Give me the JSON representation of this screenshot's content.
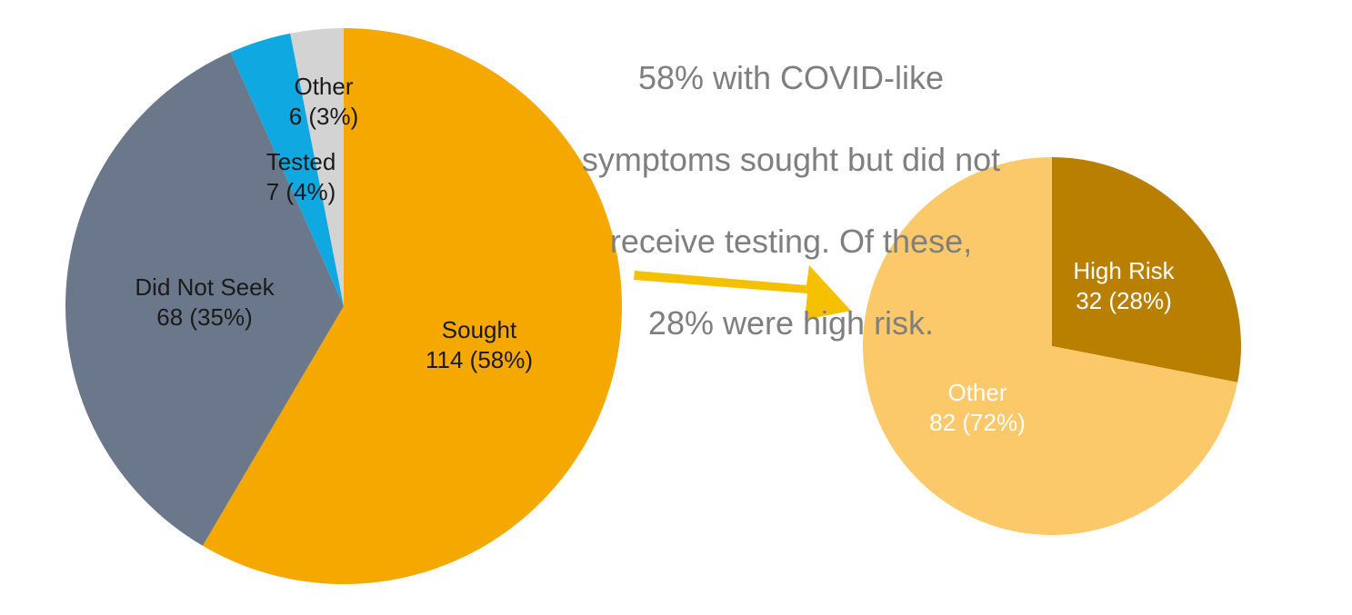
{
  "annotation": {
    "lines": [
      "58% with COVID-like",
      "symptoms sought but did not",
      "receive testing.  Of these,",
      "28% were high risk."
    ]
  },
  "colors": {
    "sought": "#f5a800",
    "did_not_seek": "#6b778a",
    "tested": "#10a8e0",
    "other_main": "#d3d3d3",
    "high_risk": "#b97f00",
    "other_sub": "#fbc96a",
    "arrow": "#f5c000",
    "annotation": "#7f7f7f"
  },
  "chart_data": [
    {
      "type": "pie",
      "slices": [
        {
          "key": "sought",
          "name": "Sought",
          "value": 114,
          "percent_label": "114 (58%)",
          "color": "#f5a800",
          "label_color": "#1a1a1a"
        },
        {
          "key": "did_not_seek",
          "name": "Did Not Seek",
          "value": 68,
          "percent_label": "68 (35%)",
          "color": "#6b778a",
          "label_color": "#1a1a1a"
        },
        {
          "key": "tested",
          "name": "Tested",
          "value": 7,
          "percent_label": "7 (4%)",
          "color": "#10a8e0",
          "label_color": "#1a1a1a"
        },
        {
          "key": "other",
          "name": "Other",
          "value": 6,
          "percent_label": "6 (3%)",
          "color": "#d3d3d3",
          "label_color": "#1a1a1a"
        }
      ]
    },
    {
      "type": "pie",
      "slices": [
        {
          "key": "high_risk",
          "name": "High Risk",
          "value": 32,
          "percent_label": "32 (28%)",
          "color": "#b97f00",
          "label_color": "#ffffff"
        },
        {
          "key": "other",
          "name": "Other",
          "value": 82,
          "percent_label": "82 (72%)",
          "color": "#fbc96a",
          "label_color": "#ffffff"
        }
      ]
    }
  ]
}
